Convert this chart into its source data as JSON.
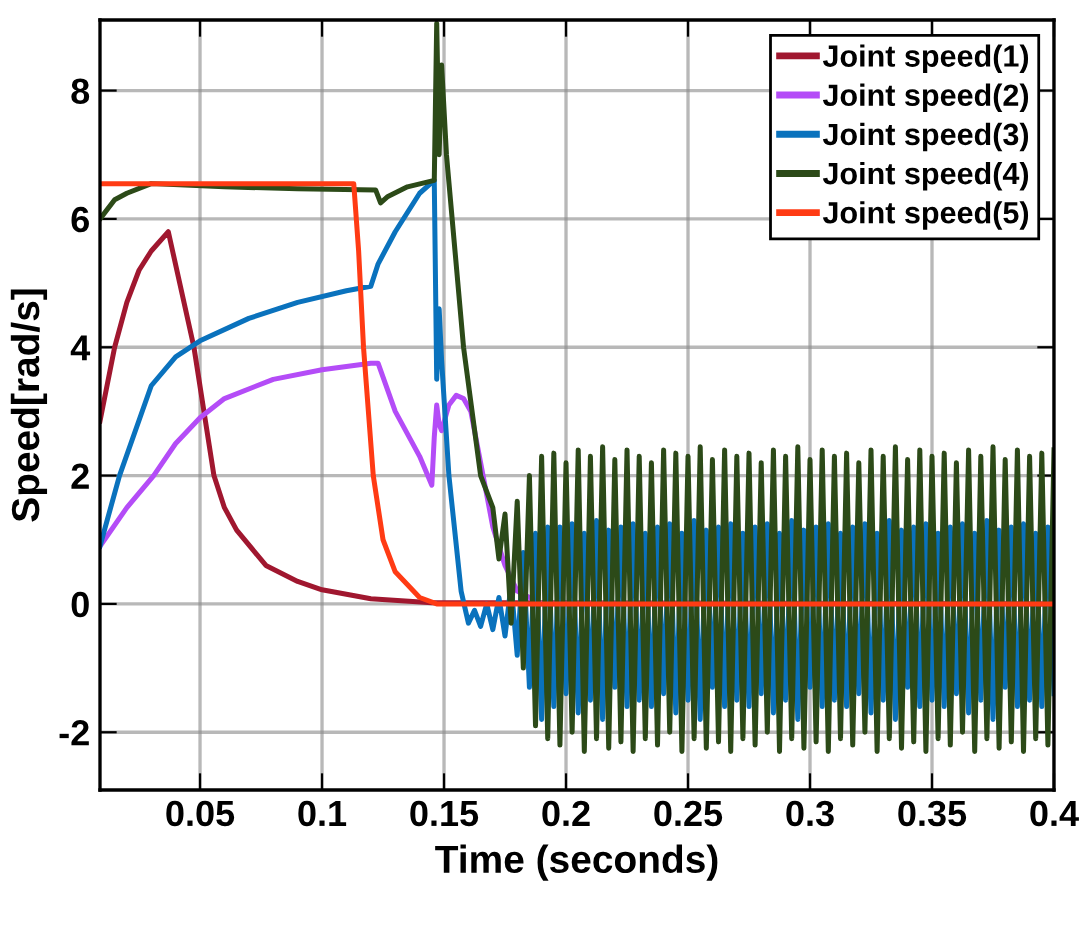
{
  "chart_data": {
    "type": "line",
    "xlabel": "Time (seconds)",
    "ylabel": "Speed[rad/s]",
    "xlim": [
      0.009,
      0.4
    ],
    "ylim": [
      -2.9,
      9.1
    ],
    "xticks": [
      0.05,
      0.1,
      0.15,
      0.2,
      0.25,
      0.3,
      0.35,
      0.4
    ],
    "yticks": [
      -2,
      0,
      2,
      4,
      6,
      8
    ],
    "grid": true,
    "legend": "top right",
    "line_style": "solid",
    "marker": "none",
    "series": [
      {
        "name": "Joint speed(1)",
        "color": "#a0172f",
        "x": [
          0.009,
          0.015,
          0.02,
          0.025,
          0.03,
          0.037,
          0.0475,
          0.0557,
          0.06,
          0.065,
          0.077,
          0.09,
          0.1,
          0.12,
          0.145,
          0.4
        ],
        "values": [
          2.85,
          4.0,
          4.7,
          5.2,
          5.5,
          5.8,
          4.0,
          2.0,
          1.5,
          1.15,
          0.6,
          0.35,
          0.22,
          0.08,
          0.02,
          0
        ]
      },
      {
        "name": "Joint speed(2)",
        "color": "#b44cf7",
        "x": [
          0.009,
          0.02,
          0.031,
          0.04,
          0.05,
          0.06,
          0.08,
          0.1,
          0.12,
          0.123,
          0.13,
          0.14,
          0.145,
          0.146,
          0.147,
          0.148,
          0.149,
          0.152,
          0.155,
          0.158,
          0.161,
          0.165,
          0.17,
          0.175,
          0.18,
          0.19,
          0.4
        ],
        "values": [
          0.9,
          1.5,
          2.0,
          2.5,
          2.9,
          3.2,
          3.5,
          3.65,
          3.75,
          3.75,
          3.0,
          2.3,
          1.85,
          2.6,
          3.1,
          2.8,
          2.7,
          3.1,
          3.25,
          3.2,
          3.0,
          2.2,
          1.2,
          0.6,
          0.2,
          0,
          0
        ]
      },
      {
        "name": "Joint speed(3)",
        "color": "#0a72bd",
        "x": [
          0.009,
          0.017,
          0.03,
          0.04,
          0.05,
          0.07,
          0.09,
          0.11,
          0.12,
          0.123,
          0.13,
          0.14,
          0.146,
          0.147,
          0.148,
          0.149,
          0.152,
          0.157,
          0.16,
          0.1625,
          0.165,
          0.1675,
          0.17,
          0.1725,
          0.175,
          0.1775,
          0.18,
          0.1825,
          0.185,
          0.1875,
          0.19,
          0.1925,
          0.195,
          0.1975,
          0.2,
          0.2025,
          0.205,
          0.2075,
          0.21,
          0.2125,
          0.215,
          0.2175,
          0.22,
          0.2225,
          0.225,
          0.2275,
          0.23,
          0.2325,
          0.235,
          0.2375,
          0.24,
          0.2425,
          0.245,
          0.2475,
          0.25,
          0.2525,
          0.255,
          0.2575,
          0.26,
          0.2625,
          0.265,
          0.2675,
          0.27,
          0.2725,
          0.275,
          0.2775,
          0.28,
          0.2825,
          0.285,
          0.2875,
          0.29,
          0.2925,
          0.295,
          0.2975,
          0.3,
          0.3025,
          0.305,
          0.3075,
          0.31,
          0.3125,
          0.315,
          0.3175,
          0.32,
          0.3225,
          0.325,
          0.3275,
          0.33,
          0.3325,
          0.335,
          0.3375,
          0.34,
          0.3425,
          0.345,
          0.3475,
          0.35,
          0.3525,
          0.355,
          0.3575,
          0.36,
          0.3625,
          0.365,
          0.3675,
          0.37,
          0.3725,
          0.375,
          0.3775,
          0.38,
          0.3825,
          0.385,
          0.3875,
          0.39,
          0.3925,
          0.395,
          0.3975,
          0.4
        ],
        "values": [
          0.9,
          2.0,
          3.4,
          3.85,
          4.1,
          4.45,
          4.7,
          4.88,
          4.95,
          5.3,
          5.8,
          6.4,
          6.6,
          3.5,
          4.6,
          3.8,
          2.0,
          0.2,
          -0.3,
          -0.1,
          -0.35,
          0.0,
          -0.4,
          0.1,
          -0.5,
          0.3,
          -0.8,
          0.8,
          -1.3,
          1.1,
          -1.8,
          1.2,
          -1.6,
          1.2,
          -1.4,
          1.25,
          -1.7,
          1.1,
          -1.5,
          1.3,
          -1.8,
          1.15,
          -1.3,
          1.2,
          -1.6,
          1.25,
          -1.5,
          1.1,
          -1.6,
          1.2,
          -1.4,
          1.25,
          -1.7,
          1.1,
          -1.5,
          1.3,
          -1.8,
          1.15,
          -1.3,
          1.2,
          -1.6,
          1.25,
          -1.5,
          1.1,
          -1.6,
          1.2,
          -1.4,
          1.25,
          -1.7,
          1.1,
          -1.5,
          1.3,
          -1.8,
          1.15,
          -1.3,
          1.2,
          -1.6,
          1.25,
          -1.5,
          1.1,
          -1.6,
          1.2,
          -1.4,
          1.25,
          -1.7,
          1.1,
          -1.5,
          1.3,
          -1.8,
          1.15,
          -1.3,
          1.2,
          -1.6,
          1.25,
          -1.5,
          1.1,
          -1.6,
          1.2,
          -1.4,
          1.25,
          -1.7,
          1.1,
          -1.5,
          1.3,
          -1.8,
          1.15,
          -1.3,
          1.2,
          -1.6,
          1.25,
          -1.5,
          1.1,
          -1.6,
          1.2,
          -1.4
        ]
      },
      {
        "name": "Joint speed(4)",
        "color": "#2c4a18",
        "x": [
          0.009,
          0.015,
          0.02,
          0.03,
          0.06,
          0.09,
          0.122,
          0.124,
          0.127,
          0.135,
          0.146,
          0.147,
          0.148,
          0.149,
          0.151,
          0.158,
          0.165,
          0.17,
          0.1725,
          0.175,
          0.1775,
          0.18,
          0.1825,
          0.185,
          0.1875,
          0.19,
          0.1925,
          0.195,
          0.1975,
          0.2,
          0.2025,
          0.205,
          0.2075,
          0.21,
          0.2125,
          0.215,
          0.2175,
          0.22,
          0.2225,
          0.225,
          0.2275,
          0.23,
          0.2325,
          0.235,
          0.2375,
          0.24,
          0.2425,
          0.245,
          0.2475,
          0.25,
          0.2525,
          0.255,
          0.2575,
          0.26,
          0.2625,
          0.265,
          0.2675,
          0.27,
          0.2725,
          0.275,
          0.2775,
          0.28,
          0.2825,
          0.285,
          0.2875,
          0.29,
          0.2925,
          0.295,
          0.2975,
          0.3,
          0.3025,
          0.305,
          0.3075,
          0.31,
          0.3125,
          0.315,
          0.3175,
          0.32,
          0.3225,
          0.325,
          0.3275,
          0.33,
          0.3325,
          0.335,
          0.3375,
          0.34,
          0.3425,
          0.345,
          0.3475,
          0.35,
          0.3525,
          0.355,
          0.3575,
          0.36,
          0.3625,
          0.365,
          0.3675,
          0.37,
          0.3725,
          0.375,
          0.3775,
          0.38,
          0.3825,
          0.385,
          0.3875,
          0.39,
          0.3925,
          0.395,
          0.3975,
          0.4
        ],
        "values": [
          6.0,
          6.3,
          6.4,
          6.55,
          6.5,
          6.47,
          6.45,
          6.25,
          6.35,
          6.5,
          6.6,
          9.05,
          7.0,
          8.4,
          7.0,
          4.0,
          2.0,
          1.5,
          0.7,
          1.4,
          -0.3,
          1.6,
          -1.0,
          2.0,
          -1.9,
          2.3,
          -2.1,
          2.35,
          -2.2,
          2.2,
          -2.0,
          2.4,
          -2.3,
          2.3,
          -2.1,
          2.45,
          -2.25,
          2.25,
          -2.15,
          2.4,
          -2.3,
          2.3,
          -2.1,
          2.2,
          -2.2,
          2.4,
          -2.0,
          2.35,
          -2.3,
          2.3,
          -2.1,
          2.45,
          -2.25,
          2.25,
          -2.15,
          2.4,
          -2.3,
          2.3,
          -2.1,
          2.35,
          -2.2,
          2.2,
          -2.0,
          2.4,
          -2.3,
          2.3,
          -2.1,
          2.45,
          -2.25,
          2.25,
          -2.15,
          2.4,
          -2.3,
          2.3,
          -2.1,
          2.35,
          -2.2,
          2.2,
          -2.0,
          2.4,
          -2.3,
          2.3,
          -2.1,
          2.45,
          -2.25,
          2.25,
          -2.15,
          2.4,
          -2.3,
          2.3,
          -2.1,
          2.35,
          -2.2,
          2.2,
          -2.0,
          2.4,
          -2.3,
          2.3,
          -2.1,
          2.45,
          -2.25,
          2.25,
          -2.15,
          2.4,
          -2.3,
          2.3,
          -2.1,
          2.35,
          -2.2,
          2.4
        ]
      },
      {
        "name": "Joint speed(5)",
        "color": "#ff3b14",
        "x": [
          0.009,
          0.113,
          0.115,
          0.117,
          0.121,
          0.125,
          0.13,
          0.14,
          0.147,
          0.4
        ],
        "values": [
          6.55,
          6.55,
          5.5,
          4.0,
          2.0,
          1.0,
          0.5,
          0.1,
          0,
          0
        ]
      }
    ]
  }
}
